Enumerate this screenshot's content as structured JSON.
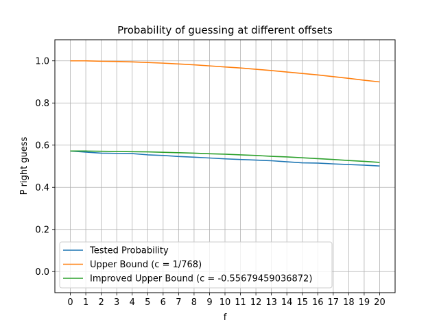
{
  "chart_data": {
    "type": "line",
    "title": "Probability of guessing at different offsets",
    "xlabel": "f",
    "ylabel": "P right guess",
    "x": [
      0,
      1,
      2,
      3,
      4,
      5,
      6,
      7,
      8,
      9,
      10,
      11,
      12,
      13,
      14,
      15,
      16,
      17,
      18,
      19,
      20
    ],
    "xlim": [
      -1,
      21
    ],
    "ylim": [
      -0.1,
      1.1
    ],
    "yticks": [
      0.0,
      0.2,
      0.4,
      0.6,
      0.8,
      1.0
    ],
    "grid": true,
    "legend_position": "lower-left",
    "series": [
      {
        "name": "Tested Probability",
        "color": "#1f77b4",
        "values": [
          0.572,
          0.567,
          0.562,
          0.561,
          0.56,
          0.554,
          0.551,
          0.546,
          0.543,
          0.539,
          0.535,
          0.532,
          0.529,
          0.526,
          0.521,
          0.516,
          0.515,
          0.511,
          0.508,
          0.505,
          0.501
        ]
      },
      {
        "name": "Upper Bound (c = 1/768)",
        "color": "#ff7f0e",
        "values": [
          1.0,
          1.0,
          0.998,
          0.997,
          0.995,
          0.992,
          0.989,
          0.985,
          0.981,
          0.976,
          0.971,
          0.966,
          0.96,
          0.954,
          0.947,
          0.94,
          0.933,
          0.925,
          0.917,
          0.908,
          0.9
        ]
      },
      {
        "name": "Improved Upper Bound (c = -0.55679459036872)",
        "color": "#2ca02c",
        "values": [
          0.572,
          0.572,
          0.571,
          0.57,
          0.569,
          0.568,
          0.566,
          0.564,
          0.562,
          0.559,
          0.557,
          0.554,
          0.551,
          0.547,
          0.544,
          0.54,
          0.536,
          0.532,
          0.527,
          0.523,
          0.518
        ]
      }
    ]
  }
}
